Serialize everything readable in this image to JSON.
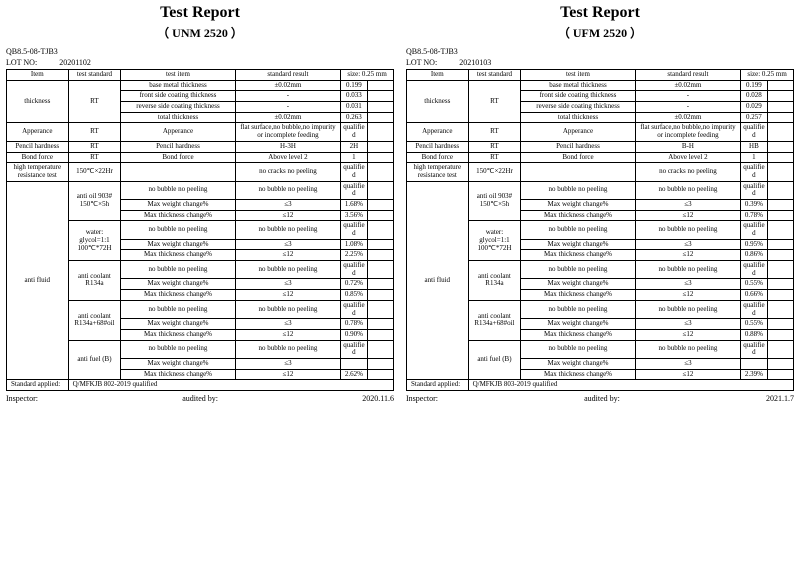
{
  "reports": [
    {
      "title": "Test Report",
      "subtitle": "（ UNM 2520 ）",
      "doc": "QB8.5-08-TJB3",
      "lot_label": "LOT NO:",
      "lot": "20201102",
      "headers": [
        "Item",
        "test standard",
        "test item",
        "standard result",
        "size: 0.25 mm",
        ""
      ],
      "rows": [
        {
          "c1": "thickness",
          "c1rs": 4,
          "c2": "RT",
          "c2rs": 4,
          "c3": "base metal thickness",
          "c4": "±0.02mm",
          "c5": "0.199",
          "c6": ""
        },
        {
          "c3": "front side coating thickness",
          "c4": "-",
          "c5": "0.033",
          "c6": ""
        },
        {
          "c3": "reverse side coating thickness",
          "c4": "-",
          "c5": "0.031",
          "c6": ""
        },
        {
          "c3": "total thickness",
          "c4": "±0.02mm",
          "c5": "0.263",
          "c6": ""
        },
        {
          "c1": "Apperance",
          "c2": "RT",
          "c3": "Apperance",
          "c4": "flat surface,no bubble,no impurity or incomplete feeding",
          "c5": "qualified",
          "c6": ""
        },
        {
          "c1": "Pencil hardness",
          "c2": "RT",
          "c3": "Pencil hardness",
          "c4": "H-3H",
          "c5": "2H",
          "c6": ""
        },
        {
          "c1": "Bond force",
          "c2": "RT",
          "c3": "Bond force",
          "c4": "Above level 2",
          "c5": "1",
          "c6": ""
        },
        {
          "c1": "high temperature resistance test",
          "c2": "150℃×22Hr",
          "c3": "",
          "c4": "no cracks no peeling",
          "c5": "qualified",
          "c6": ""
        },
        {
          "c1": "anti fluid",
          "c1rs": 15,
          "c2": "anti oil 903# 150℃×5h",
          "c2rs": 3,
          "c3": "no bubble no peeling",
          "c4": "no bubble no peeling",
          "c5": "qualified",
          "c6": ""
        },
        {
          "c3": "Max weight change%",
          "c4": "≤3",
          "c5": "1.68%",
          "c6": ""
        },
        {
          "c3": "Max thickness change%",
          "c4": "≤12",
          "c5": "3.56%",
          "c6": ""
        },
        {
          "c2": "water: glycol=1:1 100℃*72H",
          "c2rs": 3,
          "c3": "no bubble no peeling",
          "c4": "no bubble no peeling",
          "c5": "qualified",
          "c6": ""
        },
        {
          "c3": "Max weight change%",
          "c4": "≤3",
          "c5": "1.08%",
          "c6": ""
        },
        {
          "c3": "Max thickness change%",
          "c4": "≤12",
          "c5": "2.25%",
          "c6": ""
        },
        {
          "c2": "anti coolant R134a",
          "c2rs": 3,
          "c3": "no bubble no peeling",
          "c4": "no bubble no peeling",
          "c5": "qualified",
          "c6": ""
        },
        {
          "c3": "Max weight change%",
          "c4": "≤3",
          "c5": "0.72%",
          "c6": ""
        },
        {
          "c3": "Max thickness change%",
          "c4": "≤12",
          "c5": "0.85%",
          "c6": ""
        },
        {
          "c2": "anti coolant R134a+68#oil",
          "c2rs": 3,
          "c3": "no bubble no peeling",
          "c4": "no bubble no peeling",
          "c5": "qualified",
          "c6": ""
        },
        {
          "c3": "Max weight change%",
          "c4": "≤3",
          "c5": "0.78%",
          "c6": ""
        },
        {
          "c3": "Max thickness change%",
          "c4": "≤12",
          "c5": "0.90%",
          "c6": ""
        },
        {
          "c2": "anti fuel (B)",
          "c2rs": 3,
          "c3": "no bubble no peeling",
          "c4": "no bubble no peeling",
          "c5": "qualified",
          "c6": ""
        },
        {
          "c3": "Max weight change%",
          "c4": "≤3",
          "c5": "",
          "c6": ""
        },
        {
          "c3": "Max thickness change%",
          "c4": "≤12",
          "c5": "2.62%",
          "c6": ""
        }
      ],
      "std_applied_label": "Standard applied:",
      "std_applied": "Q/MFKJB 802-2019  qualified",
      "footer": {
        "inspector": "Inspector:",
        "audited": "audited by:",
        "date": "2020.11.6"
      }
    },
    {
      "title": "Test Report",
      "subtitle": "（ UFM 2520 ）",
      "doc": "QB8.5-08-TJB3",
      "lot_label": "LOT NO:",
      "lot": "20210103",
      "headers": [
        "Item",
        "test standard",
        "test item",
        "standard result",
        "size: 0.25 mm",
        ""
      ],
      "rows": [
        {
          "c1": "thickness",
          "c1rs": 4,
          "c2": "RT",
          "c2rs": 4,
          "c3": "base metal thickness",
          "c4": "±0.02mm",
          "c5": "0.199",
          "c6": ""
        },
        {
          "c3": "front side coating thickness",
          "c4": "-",
          "c5": "0.028",
          "c6": ""
        },
        {
          "c3": "reverse side coating thickness",
          "c4": "-",
          "c5": "0.029",
          "c6": ""
        },
        {
          "c3": "total thickness",
          "c4": "±0.02mm",
          "c5": "0.257",
          "c6": ""
        },
        {
          "c1": "Apperance",
          "c2": "RT",
          "c3": "Apperance",
          "c4": "flat surface,no bubble,no impurity or incomplete feeding",
          "c5": "qualified",
          "c6": ""
        },
        {
          "c1": "Pencil hardness",
          "c2": "RT",
          "c3": "Pencil hardness",
          "c4": "B-H",
          "c5": "HB",
          "c6": ""
        },
        {
          "c1": "Bond force",
          "c2": "RT",
          "c3": "Bond force",
          "c4": "Above level 2",
          "c5": "1",
          "c6": ""
        },
        {
          "c1": "high temperature resistance test",
          "c2": "150℃×22Hr",
          "c3": "",
          "c4": "no cracks no peeling",
          "c5": "qualified",
          "c6": ""
        },
        {
          "c1": "anti fluid",
          "c1rs": 15,
          "c2": "anti oil 903# 150℃×5h",
          "c2rs": 3,
          "c3": "no bubble no peeling",
          "c4": "no bubble no peeling",
          "c5": "qualified",
          "c6": ""
        },
        {
          "c3": "Max weight change%",
          "c4": "≤3",
          "c5": "0.39%",
          "c6": ""
        },
        {
          "c3": "Max thickness change%",
          "c4": "≤12",
          "c5": "0.78%",
          "c6": ""
        },
        {
          "c2": "water: glycol=1:1 100℃*72H",
          "c2rs": 3,
          "c3": "no bubble no peeling",
          "c4": "no bubble no peeling",
          "c5": "qualified",
          "c6": ""
        },
        {
          "c3": "Max weight change%",
          "c4": "≤3",
          "c5": "0.95%",
          "c6": ""
        },
        {
          "c3": "Max thickness change%",
          "c4": "≤12",
          "c5": "0.86%",
          "c6": ""
        },
        {
          "c2": "anti coolant R134a",
          "c2rs": 3,
          "c3": "no bubble no peeling",
          "c4": "no bubble no peeling",
          "c5": "qualified",
          "c6": ""
        },
        {
          "c3": "Max weight change%",
          "c4": "≤3",
          "c5": "0.55%",
          "c6": ""
        },
        {
          "c3": "Max thickness change%",
          "c4": "≤12",
          "c5": "0.66%",
          "c6": ""
        },
        {
          "c2": "anti coolant R134a+68#oil",
          "c2rs": 3,
          "c3": "no bubble no peeling",
          "c4": "no bubble no peeling",
          "c5": "qualified",
          "c6": ""
        },
        {
          "c3": "Max weight change%",
          "c4": "≤3",
          "c5": "0.55%",
          "c6": ""
        },
        {
          "c3": "Max thickness change%",
          "c4": "≤12",
          "c5": "0.88%",
          "c6": ""
        },
        {
          "c2": "anti fuel (B)",
          "c2rs": 3,
          "c3": "no bubble no peeling",
          "c4": "no bubble no peeling",
          "c5": "qualified",
          "c6": ""
        },
        {
          "c3": "Max weight change%",
          "c4": "≤3",
          "c5": "",
          "c6": ""
        },
        {
          "c3": "Max thickness change%",
          "c4": "≤12",
          "c5": "2.39%",
          "c6": ""
        }
      ],
      "std_applied_label": "Standard applied:",
      "std_applied": "Q/MFKJB 803-2019  qualified",
      "footer": {
        "inspector": "Inspector:",
        "audited": "audited by:",
        "date": "2021.1.7"
      }
    }
  ]
}
